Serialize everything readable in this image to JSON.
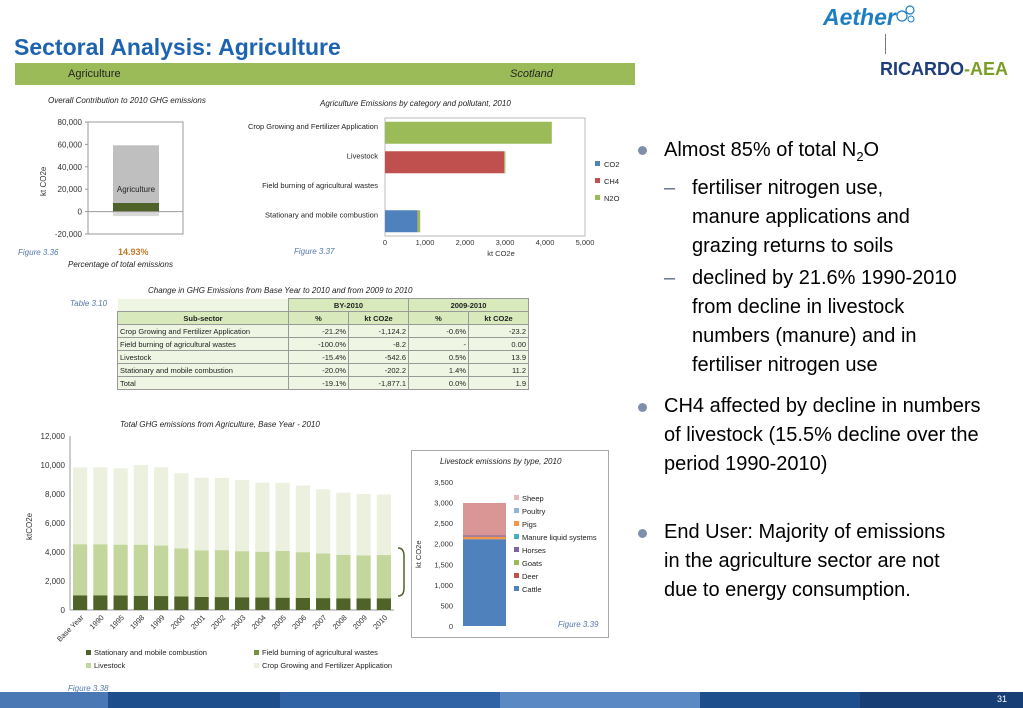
{
  "header": {
    "title": "Sectoral Analysis: Agriculture",
    "bar_left": "Agriculture",
    "bar_right": "Scotland",
    "logo_aether": "Aether",
    "logo_ricardo": "RICARDO",
    "logo_aea": "-AEA"
  },
  "fig336": {
    "title": "Overall Contribution to 2010 GHG emissions",
    "figure_label": "Figure 3.36",
    "percent": "14.93%",
    "caption": "Percentage of total emissions",
    "ylabel": "kt CO2e",
    "bar_label": "Agriculture",
    "yticks": [
      "80,000",
      "60,000",
      "40,000",
      "20,000",
      "0",
      "-20,000"
    ]
  },
  "fig337": {
    "title": "Agriculture Emissions by category and pollutant, 2010",
    "figure_label": "Figure 3.37",
    "xlabel": "kt CO2e",
    "xticks": [
      "0",
      "1,000",
      "2,000",
      "3,000",
      "4,000",
      "5,000"
    ]
  },
  "table310": {
    "label": "Table 3.10",
    "title": "Change in GHG Emissions from Base Year to 2010 and from 2009 to 2010",
    "group_headers": [
      "BY-2010",
      "2009-2010"
    ],
    "col_headers": [
      "Sub-sector",
      "%",
      "kt CO2e",
      "%",
      "kt CO2e"
    ],
    "rows": [
      [
        "Crop Growing and Fertilizer Application",
        "-21.2%",
        "-1,124.2",
        "-0.6%",
        "-23.2"
      ],
      [
        "Field burning of agricultural wastes",
        "-100.0%",
        "-8.2",
        "-",
        "0.00"
      ],
      [
        "Livestock",
        "-15.4%",
        "-542.6",
        "0.5%",
        "13.9"
      ],
      [
        "Stationary and mobile combustion",
        "-20.0%",
        "-202.2",
        "1.4%",
        "11.2"
      ],
      [
        "Total",
        "-19.1%",
        "-1,877.1",
        "0.0%",
        "1.9"
      ]
    ]
  },
  "fig338": {
    "title": "Total GHG emissions from Agriculture, Base Year - 2010",
    "figure_label": "Figure 3.38",
    "ylabel": "ktCO2e",
    "yticks": [
      "12,000",
      "10,000",
      "8,000",
      "6,000",
      "4,000",
      "2,000",
      "0"
    ]
  },
  "fig339": {
    "title": "Livestock emissions by type, 2010",
    "figure_label": "Figure 3.39",
    "ylabel": "kt CO2e",
    "yticks": [
      "3,500",
      "3,000",
      "2,500",
      "2,000",
      "1,500",
      "1,000",
      "500",
      "0"
    ]
  },
  "chart_data": [
    {
      "type": "bar",
      "title": "Overall Contribution to 2010 GHG emissions",
      "ylabel": "kt CO2e",
      "categories": [
        "Agriculture"
      ],
      "ylim": [
        -20000,
        80000
      ],
      "series": [
        {
          "name": "Agriculture",
          "values": [
            7700
          ]
        },
        {
          "name": "Other",
          "values": [
            51500
          ]
        },
        {
          "name": "Negative",
          "values": [
            -4000
          ]
        }
      ],
      "colors": [
        "#4f6228",
        "#bfbfbf",
        "#d9d9d9"
      ]
    },
    {
      "type": "bar",
      "title": "Agriculture Emissions by category and pollutant, 2010",
      "xlabel": "kt CO2e",
      "orientation": "horizontal",
      "stacked": true,
      "xlim": [
        0,
        5000
      ],
      "categories": [
        "Crop Growing and Fertilizer Application",
        "Livestock",
        "Field burning of agricultural wastes",
        "Stationary and mobile combustion"
      ],
      "series": [
        {
          "name": "CO2",
          "values": [
            0,
            0,
            0,
            810
          ],
          "color": "#4f81bd"
        },
        {
          "name": "CH4",
          "values": [
            0,
            2980,
            0,
            10
          ],
          "color": "#c0504d"
        },
        {
          "name": "N2O",
          "values": [
            4170,
            30,
            0,
            60
          ],
          "color": "#9bbb59"
        }
      ],
      "legend": "right"
    },
    {
      "type": "bar",
      "title": "Total GHG emissions from Agriculture, Base Year - 2010",
      "ylabel": "ktCO2e",
      "stacked": true,
      "ylim": [
        0,
        12000
      ],
      "categories": [
        "Base Year",
        "1990",
        "1995",
        "1998",
        "1999",
        "2000",
        "2001",
        "2002",
        "2003",
        "2004",
        "2005",
        "2006",
        "2007",
        "2008",
        "2009",
        "2010"
      ],
      "series": [
        {
          "name": "Stationary and mobile combustion",
          "values": [
            1010,
            1010,
            1000,
            980,
            960,
            930,
            900,
            890,
            880,
            860,
            850,
            830,
            820,
            810,
            810,
            810
          ],
          "color": "#4f6228"
        },
        {
          "name": "Field burning of agricultural wastes",
          "values": [
            8,
            8,
            8,
            6,
            5,
            2,
            0,
            0,
            0,
            0,
            0,
            0,
            0,
            0,
            0,
            0
          ],
          "color": "#76923c"
        },
        {
          "name": "Livestock",
          "values": [
            3520,
            3520,
            3500,
            3520,
            3480,
            3320,
            3220,
            3240,
            3180,
            3160,
            3220,
            3160,
            3080,
            3000,
            2960,
            2980
          ],
          "color": "#c3d69b"
        },
        {
          "name": "Crop Growing and Fertilizer Application",
          "values": [
            5300,
            5300,
            5260,
            5500,
            5400,
            5180,
            5000,
            4980,
            4900,
            4760,
            4700,
            4600,
            4420,
            4280,
            4230,
            4170
          ],
          "color": "#ebf1de"
        }
      ],
      "legend": "bottom"
    },
    {
      "type": "bar",
      "title": "Livestock emissions by type, 2010",
      "ylabel": "kt CO2e",
      "stacked": true,
      "ylim": [
        0,
        3500
      ],
      "categories": [
        ""
      ],
      "series": [
        {
          "name": "Sheep",
          "values": [
            0
          ],
          "color": "#e6b9b8"
        },
        {
          "name": "Poultry",
          "values": [
            0
          ],
          "color": "#95b3d7"
        },
        {
          "name": "Pigs",
          "values": [
            60
          ],
          "color": "#f79646"
        },
        {
          "name": "Manure liquid systems",
          "values": [
            0
          ],
          "color": "#4bacc6"
        },
        {
          "name": "Horses",
          "values": [
            30
          ],
          "color": "#8064a2"
        },
        {
          "name": "Goats",
          "values": [
            0
          ],
          "color": "#9bbb59"
        },
        {
          "name": "Deer",
          "values": [
            0
          ],
          "color": "#c0504d"
        },
        {
          "name": "Cattle",
          "values": [
            2110
          ],
          "color": "#4f81bd"
        },
        {
          "name": "Sheep (top)",
          "values": [
            790
          ],
          "color": "#d99694"
        }
      ],
      "legend_entries": [
        "Sheep",
        "Poultry",
        "Pigs",
        "Manure liquid systems",
        "Horses",
        "Goats",
        "Deer",
        "Cattle"
      ],
      "legend": "right"
    }
  ],
  "bullets": {
    "b1_pre": "Almost 85% of total N",
    "b1_sub": "2",
    "b1_post": "O",
    "b1_s1": "fertiliser nitrogen use, manure applications and grazing returns to soils",
    "b1_s2": "declined by 21.6% 1990-2010 from decline in livestock numbers (manure) and in fertiliser nitrogen use",
    "b2": "CH4 affected by decline in numbers of livestock (15.5% decline over the period 1990-2010)",
    "b3": "End User: Majority of emissions in the agriculture sector are not due to energy consumption."
  },
  "footer": {
    "page": "31"
  }
}
